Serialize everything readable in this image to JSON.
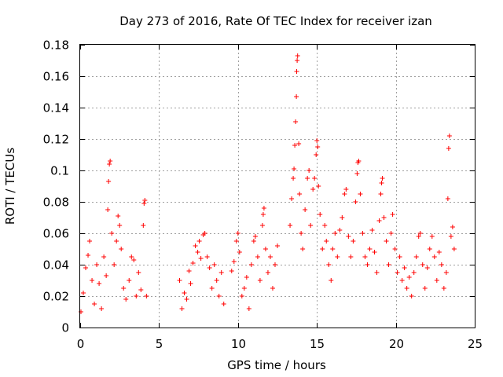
{
  "chart_data": {
    "type": "scatter",
    "title": "Day 273 of 2016, Rate Of TEC Index for receiver izan",
    "xlabel": "GPS time / hours",
    "ylabel": "ROTI / TECUs",
    "xlim": [
      0,
      25
    ],
    "ylim": [
      0,
      0.18
    ],
    "xticks": [
      0,
      5,
      10,
      15,
      20,
      25
    ],
    "xtick_labels": [
      "0",
      "5",
      "10",
      "15",
      "20",
      "25"
    ],
    "yticks": [
      0,
      0.02,
      0.04,
      0.06,
      0.08,
      0.1,
      0.12,
      0.14,
      0.16,
      0.18
    ],
    "ytick_labels": [
      "0",
      "0.02",
      "0.04",
      "0.06",
      "0.08",
      "0.1",
      "0.12",
      "0.14",
      "0.16",
      "0.18"
    ],
    "grid": true,
    "marker": "+",
    "series_color": "#ff0000",
    "data_gaps_hours": [
      [
        4.3,
        6.2
      ],
      [
        9.2,
        9.5
      ]
    ],
    "series": [
      {
        "name": "ROTI",
        "points": [
          [
            0.05,
            0.01
          ],
          [
            0.2,
            0.022
          ],
          [
            0.35,
            0.038
          ],
          [
            0.5,
            0.046
          ],
          [
            0.6,
            0.055
          ],
          [
            0.75,
            0.03
          ],
          [
            0.9,
            0.015
          ],
          [
            1.05,
            0.04
          ],
          [
            1.2,
            0.028
          ],
          [
            1.35,
            0.012
          ],
          [
            1.5,
            0.045
          ],
          [
            1.65,
            0.033
          ],
          [
            1.75,
            0.075
          ],
          [
            1.8,
            0.093
          ],
          [
            1.85,
            0.104
          ],
          [
            1.9,
            0.106
          ],
          [
            2.0,
            0.06
          ],
          [
            2.15,
            0.04
          ],
          [
            2.3,
            0.055
          ],
          [
            2.4,
            0.071
          ],
          [
            2.5,
            0.065
          ],
          [
            2.6,
            0.05
          ],
          [
            2.75,
            0.025
          ],
          [
            2.9,
            0.018
          ],
          [
            3.1,
            0.03
          ],
          [
            3.25,
            0.045
          ],
          [
            3.4,
            0.043
          ],
          [
            3.55,
            0.02
          ],
          [
            3.7,
            0.035
          ],
          [
            3.85,
            0.024
          ],
          [
            4.0,
            0.065
          ],
          [
            4.05,
            0.079
          ],
          [
            4.1,
            0.081
          ],
          [
            4.2,
            0.02
          ],
          [
            6.3,
            0.03
          ],
          [
            6.45,
            0.012
          ],
          [
            6.6,
            0.022
          ],
          [
            6.75,
            0.018
          ],
          [
            6.9,
            0.036
          ],
          [
            7.0,
            0.028
          ],
          [
            7.15,
            0.041
          ],
          [
            7.3,
            0.052
          ],
          [
            7.45,
            0.048
          ],
          [
            7.55,
            0.055
          ],
          [
            7.65,
            0.044
          ],
          [
            7.8,
            0.059
          ],
          [
            7.9,
            0.06
          ],
          [
            8.05,
            0.045
          ],
          [
            8.2,
            0.038
          ],
          [
            8.35,
            0.025
          ],
          [
            8.5,
            0.04
          ],
          [
            8.65,
            0.03
          ],
          [
            8.8,
            0.02
          ],
          [
            8.95,
            0.035
          ],
          [
            9.1,
            0.015
          ],
          [
            9.6,
            0.036
          ],
          [
            9.75,
            0.042
          ],
          [
            9.9,
            0.055
          ],
          [
            10.0,
            0.06
          ],
          [
            10.1,
            0.048
          ],
          [
            10.25,
            0.02
          ],
          [
            10.4,
            0.025
          ],
          [
            10.55,
            0.032
          ],
          [
            10.7,
            0.012
          ],
          [
            10.85,
            0.04
          ],
          [
            11.0,
            0.055
          ],
          [
            11.1,
            0.058
          ],
          [
            11.25,
            0.045
          ],
          [
            11.4,
            0.03
          ],
          [
            11.55,
            0.065
          ],
          [
            11.6,
            0.072
          ],
          [
            11.65,
            0.076
          ],
          [
            11.75,
            0.05
          ],
          [
            11.9,
            0.035
          ],
          [
            12.05,
            0.045
          ],
          [
            12.2,
            0.025
          ],
          [
            12.35,
            0.04
          ],
          [
            12.5,
            0.052
          ],
          [
            13.3,
            0.065
          ],
          [
            13.4,
            0.082
          ],
          [
            13.5,
            0.095
          ],
          [
            13.55,
            0.101
          ],
          [
            13.6,
            0.116
          ],
          [
            13.65,
            0.131
          ],
          [
            13.7,
            0.147
          ],
          [
            13.72,
            0.163
          ],
          [
            13.75,
            0.17
          ],
          [
            13.78,
            0.173
          ],
          [
            13.85,
            0.117
          ],
          [
            13.9,
            0.085
          ],
          [
            14.0,
            0.06
          ],
          [
            14.1,
            0.05
          ],
          [
            14.25,
            0.075
          ],
          [
            14.4,
            0.095
          ],
          [
            14.5,
            0.1
          ],
          [
            14.6,
            0.065
          ],
          [
            14.75,
            0.088
          ],
          [
            14.85,
            0.095
          ],
          [
            14.95,
            0.11
          ],
          [
            15.0,
            0.119
          ],
          [
            15.05,
            0.115
          ],
          [
            15.1,
            0.09
          ],
          [
            15.2,
            0.072
          ],
          [
            15.35,
            0.05
          ],
          [
            15.5,
            0.065
          ],
          [
            15.6,
            0.055
          ],
          [
            15.75,
            0.04
          ],
          [
            15.9,
            0.03
          ],
          [
            16.0,
            0.05
          ],
          [
            16.15,
            0.06
          ],
          [
            16.3,
            0.045
          ],
          [
            16.45,
            0.062
          ],
          [
            16.6,
            0.07
          ],
          [
            16.75,
            0.085
          ],
          [
            16.85,
            0.088
          ],
          [
            17.0,
            0.058
          ],
          [
            17.15,
            0.045
          ],
          [
            17.3,
            0.055
          ],
          [
            17.45,
            0.08
          ],
          [
            17.55,
            0.098
          ],
          [
            17.6,
            0.105
          ],
          [
            17.65,
            0.106
          ],
          [
            17.75,
            0.085
          ],
          [
            17.9,
            0.06
          ],
          [
            18.05,
            0.045
          ],
          [
            18.2,
            0.04
          ],
          [
            18.35,
            0.05
          ],
          [
            18.5,
            0.062
          ],
          [
            18.65,
            0.048
          ],
          [
            18.8,
            0.035
          ],
          [
            18.95,
            0.068
          ],
          [
            19.05,
            0.085
          ],
          [
            19.1,
            0.092
          ],
          [
            19.15,
            0.095
          ],
          [
            19.25,
            0.07
          ],
          [
            19.4,
            0.055
          ],
          [
            19.55,
            0.04
          ],
          [
            19.7,
            0.06
          ],
          [
            19.8,
            0.072
          ],
          [
            19.95,
            0.05
          ],
          [
            20.1,
            0.035
          ],
          [
            20.25,
            0.045
          ],
          [
            20.4,
            0.03
          ],
          [
            20.55,
            0.038
          ],
          [
            20.7,
            0.025
          ],
          [
            20.85,
            0.032
          ],
          [
            21.0,
            0.02
          ],
          [
            21.15,
            0.035
          ],
          [
            21.3,
            0.045
          ],
          [
            21.45,
            0.058
          ],
          [
            21.55,
            0.06
          ],
          [
            21.7,
            0.04
          ],
          [
            21.85,
            0.025
          ],
          [
            22.0,
            0.038
          ],
          [
            22.15,
            0.05
          ],
          [
            22.3,
            0.058
          ],
          [
            22.45,
            0.045
          ],
          [
            22.6,
            0.03
          ],
          [
            22.75,
            0.048
          ],
          [
            22.9,
            0.04
          ],
          [
            23.05,
            0.025
          ],
          [
            23.2,
            0.035
          ],
          [
            23.3,
            0.082
          ],
          [
            23.35,
            0.114
          ],
          [
            23.4,
            0.122
          ],
          [
            23.5,
            0.058
          ],
          [
            23.6,
            0.064
          ],
          [
            23.7,
            0.05
          ]
        ]
      }
    ]
  }
}
